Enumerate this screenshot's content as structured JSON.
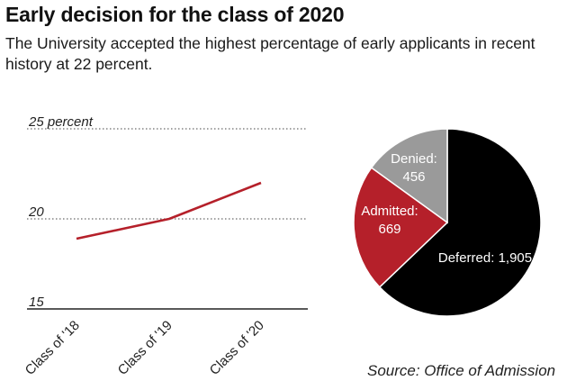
{
  "header": {
    "title": "Early decision for the class of 2020",
    "subtitle": "The University accepted the highest percentage of early applicants in recent history at 22 percent."
  },
  "source": "Source: Office of Admission",
  "chart_data": [
    {
      "type": "line",
      "title": "",
      "xlabel": "",
      "ylabel": "",
      "categories": [
        "Class of '18",
        "Class of '19",
        "Class of '20"
      ],
      "series": [
        {
          "values": [
            18.9,
            20.0,
            22.0
          ],
          "color": "#b5202a"
        }
      ],
      "ylim": [
        15,
        25
      ],
      "yticks": [
        {
          "value": 25,
          "label": "25 percent"
        },
        {
          "value": 20,
          "label": "20"
        },
        {
          "value": 15,
          "label": "15"
        }
      ],
      "grid": "dotted horizontal gridlines at tick values"
    },
    {
      "type": "pie",
      "title": "",
      "slices": [
        {
          "label": "Deferred",
          "value": 1905,
          "display": "Deferred: 1,905",
          "color": "#000000",
          "text_color": "#ffffff"
        },
        {
          "label": "Admitted",
          "value": 669,
          "display": "Admitted:",
          "display_value": "669",
          "color": "#b5202a",
          "text_color": "#ffffff"
        },
        {
          "label": "Denied",
          "value": 456,
          "display": "Denied:",
          "display_value": "456",
          "color": "#9a9a9a",
          "text_color": "#ffffff"
        }
      ]
    }
  ]
}
